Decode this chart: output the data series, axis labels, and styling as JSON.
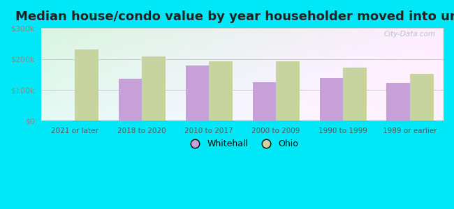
{
  "title": "Median house/condo value by year householder moved into unit",
  "categories": [
    "2021 or later",
    "2018 to 2020",
    "2010 to 2017",
    "2000 to 2009",
    "1990 to 1999",
    "1989 or earlier"
  ],
  "whitehall_values": [
    null,
    135000,
    178000,
    125000,
    138000,
    123000
  ],
  "ohio_values": [
    230000,
    208000,
    193000,
    192000,
    172000,
    152000
  ],
  "whitehall_color": "#c8a0d8",
  "ohio_color": "#c8d4a0",
  "background_outer": "#00e8f8",
  "ylim": [
    0,
    300000
  ],
  "yticks": [
    0,
    100000,
    200000,
    300000
  ],
  "legend_whitehall": "Whitehall",
  "legend_ohio": "Ohio",
  "watermark": "City-Data.com",
  "bar_width": 0.35,
  "title_fontsize": 13
}
